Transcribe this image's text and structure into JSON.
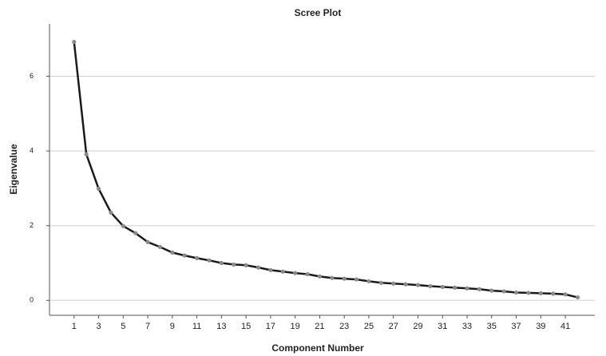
{
  "chart_data": {
    "type": "line",
    "title": "Scree Plot",
    "xlabel": "Component Number",
    "ylabel": "Eigenvalue",
    "x": [
      1,
      2,
      3,
      4,
      5,
      6,
      7,
      8,
      9,
      10,
      11,
      12,
      13,
      14,
      15,
      16,
      17,
      18,
      19,
      20,
      21,
      22,
      23,
      24,
      25,
      26,
      27,
      28,
      29,
      30,
      31,
      32,
      33,
      34,
      35,
      36,
      37,
      38,
      39,
      40,
      41,
      42
    ],
    "series": [
      {
        "name": "Eigenvalue",
        "color": "#1a1a1a",
        "marker_color": "#8a8a8a",
        "values": [
          6.92,
          3.91,
          2.99,
          2.35,
          1.99,
          1.8,
          1.56,
          1.43,
          1.28,
          1.2,
          1.13,
          1.07,
          1.0,
          0.96,
          0.94,
          0.88,
          0.81,
          0.77,
          0.73,
          0.7,
          0.64,
          0.6,
          0.58,
          0.56,
          0.51,
          0.47,
          0.45,
          0.43,
          0.41,
          0.38,
          0.36,
          0.34,
          0.32,
          0.3,
          0.26,
          0.24,
          0.21,
          0.2,
          0.19,
          0.18,
          0.16,
          0.08
        ]
      }
    ],
    "xlim": [
      -1,
      43.4
    ],
    "xticks": [
      1,
      3,
      5,
      7,
      9,
      11,
      13,
      15,
      17,
      19,
      21,
      23,
      25,
      27,
      29,
      31,
      33,
      35,
      37,
      39,
      41
    ],
    "ylim": [
      -0.4,
      7.4
    ],
    "yticks": [
      0,
      2,
      4,
      6
    ],
    "grid": true
  }
}
